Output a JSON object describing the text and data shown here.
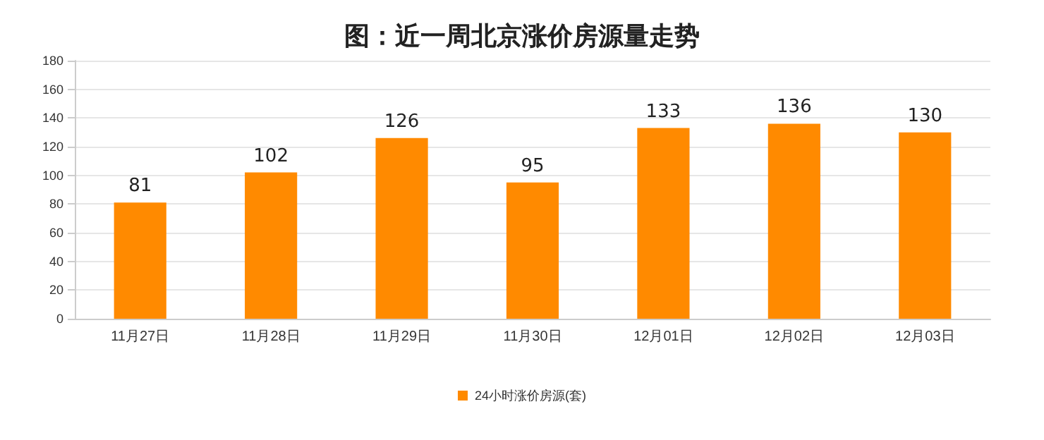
{
  "chart_data": {
    "type": "bar",
    "title": "图：近一周北京涨价房源量走势",
    "categories": [
      "11月27日",
      "11月28日",
      "11月29日",
      "11月30日",
      "12月01日",
      "12月02日",
      "12月03日"
    ],
    "series": [
      {
        "name": "24小时涨价房源(套)",
        "color": "#ff8a00",
        "values": [
          81,
          102,
          126,
          95,
          133,
          136,
          130
        ]
      }
    ],
    "ylim": [
      0,
      180
    ],
    "yticks": [
      0,
      20,
      40,
      60,
      80,
      100,
      120,
      140,
      160,
      180
    ],
    "grid": "y",
    "legend": "bottom",
    "data_labels": true
  }
}
